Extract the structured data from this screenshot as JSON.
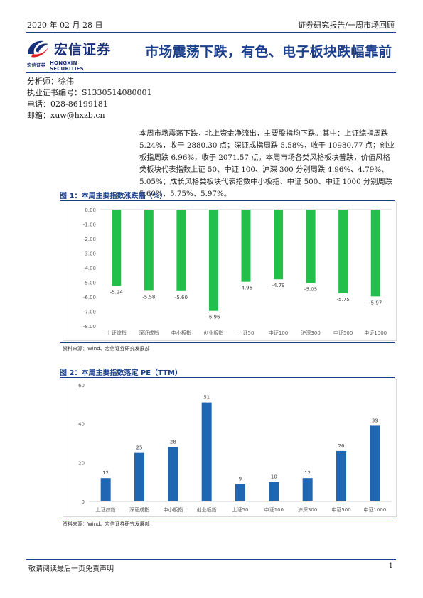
{
  "header": {
    "date": "2020 年 02 月 28 日",
    "report_type": "证券研究报告/一周市场回顾",
    "logo_cn": "宏信证券",
    "logo_sub_cn": "宏信证券",
    "logo_sub_en": "HONGXIN SECURITIES",
    "colors": {
      "brand_blue": "#1b3f8a",
      "logo_red": "#e02020"
    }
  },
  "title": "市场震荡下跌，有色、电子板块跌幅靠前",
  "analyst": {
    "name_line": "分析师：徐伟",
    "license_line": "执业证书编号：S1330514080001",
    "phone_line": "电话：028-86199181",
    "email_line": "邮箱：xuw@hxzb.cn"
  },
  "summary": "本周市场震荡下跌，北上资金净流出，主要股指均下跌。其中：上证综指周跌 5.24%，收于 2880.30 点；深证成指周跌 5.58%，收于 10980.77 点；创业板指周跌 6.96%，收于 2071.57 点。本周市场各类风格板块普跌，价值风格类板块代表指数上证 50、中证 100、沪深 300 分别周跌 4.96%、4.79%、5.05%；成长风格类板块代表指数中小板指、中证 500、中证 1000 分别周跌 5.60%、5.75%、5.97%。",
  "figure1": {
    "title": "图 1：本周主要指数涨跌幅（%）",
    "source": "资料来源：Wind、宏信证券研究发展部"
  },
  "figure2": {
    "title": "图 2：本周主要指数落定 PE（TTM）",
    "source": "资料来源：Wind、宏信证券研究发展部"
  },
  "chart_data": [
    {
      "type": "bar",
      "categories": [
        "上证综指",
        "深证成指",
        "中小板指",
        "创业板指",
        "上证50",
        "中证100",
        "沪深300",
        "中证500",
        "中证1000"
      ],
      "values": [
        -5.24,
        -5.58,
        -5.6,
        -6.96,
        -4.96,
        -4.79,
        -5.05,
        -5.75,
        -5.97
      ],
      "value_labels": [
        "-5.24",
        "-5.58",
        "-5.60",
        "-6.96",
        "-4.96",
        "-4.79",
        "-5.05",
        "-5.75",
        "-5.97"
      ],
      "ylim": [
        -8,
        0
      ],
      "yticks": [
        "0.00",
        "-1.00",
        "-2.00",
        "-3.00",
        "-4.00",
        "-5.00",
        "-6.00",
        "-7.00",
        "-8.00"
      ],
      "color": "#22c04a",
      "grid": false,
      "legend": "none"
    },
    {
      "type": "bar",
      "categories": [
        "上证综指",
        "深证成指",
        "中小板指",
        "创业板指",
        "上证50",
        "中证100",
        "沪深300",
        "中证500",
        "中证1000"
      ],
      "values": [
        12,
        25,
        28,
        51,
        9,
        10,
        12,
        26,
        39
      ],
      "value_labels": [
        "12",
        "25",
        "28",
        "51",
        "9",
        "10",
        "12",
        "26",
        "39"
      ],
      "ylim": [
        0,
        60
      ],
      "yticks": [
        "60",
        "40",
        "20",
        "0"
      ],
      "color": "#1f66b3",
      "grid": false,
      "legend": "none"
    }
  ],
  "footer": {
    "disclaimer": "敬请阅读最后一页免责声明",
    "page_number": "1"
  }
}
